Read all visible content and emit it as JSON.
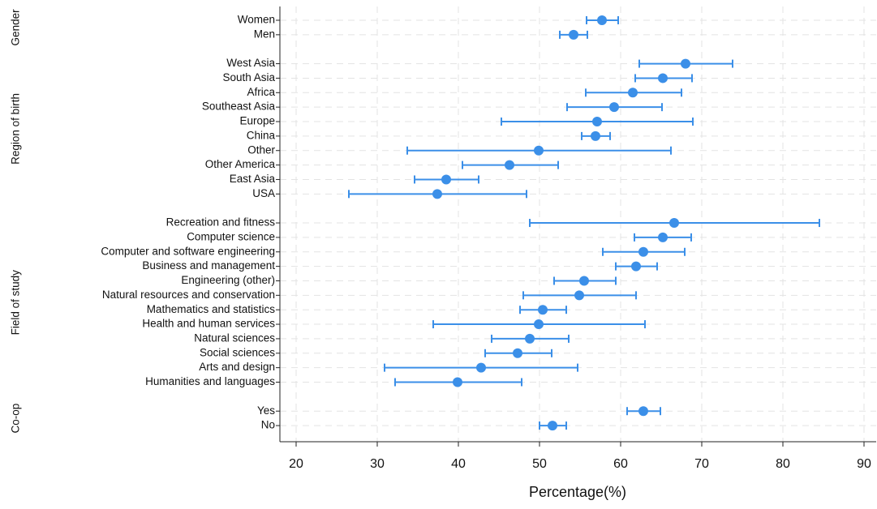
{
  "chart_data": {
    "type": "errorbar",
    "color": "#3b8fe8",
    "grid": true,
    "xlabel": "Percentage(%)",
    "xlim": [
      18,
      91.5
    ],
    "xticks": [
      20,
      30,
      40,
      50,
      60,
      70,
      80,
      90
    ],
    "groups": [
      {
        "name": "Gender",
        "categories": [
          "Women",
          "Men"
        ],
        "values": [
          57.7,
          54.2
        ],
        "ci_low": [
          55.8,
          52.5
        ],
        "ci_high": [
          59.7,
          55.9
        ]
      },
      {
        "name": "Region of birth",
        "categories": [
          "West Asia",
          "South Asia",
          "Africa",
          "Southeast Asia",
          "Europe",
          "China",
          "Other",
          "Other America",
          "East Asia",
          "USA"
        ],
        "values": [
          68.0,
          65.2,
          61.5,
          59.2,
          57.1,
          56.9,
          49.9,
          46.3,
          38.5,
          37.4
        ],
        "ci_low": [
          62.3,
          61.8,
          55.7,
          53.4,
          45.3,
          55.2,
          33.7,
          40.5,
          34.6,
          26.5
        ],
        "ci_high": [
          73.8,
          68.8,
          67.5,
          65.1,
          68.9,
          58.7,
          66.2,
          52.3,
          42.5,
          48.4
        ]
      },
      {
        "name": "Field of study",
        "categories": [
          "Recreation and fitness",
          "Computer science",
          "Computer and software engineering",
          "Business and management",
          "Engineering (other)",
          "Natural resources and conservation",
          "Mathematics and statistics",
          "Health and human services",
          "Natural sciences",
          "Social sciences",
          "Arts and design",
          "Humanities and languages"
        ],
        "values": [
          66.6,
          65.2,
          62.8,
          61.9,
          55.5,
          54.9,
          50.4,
          49.9,
          48.8,
          47.3,
          42.8,
          39.9
        ],
        "ci_low": [
          48.8,
          61.7,
          57.8,
          59.4,
          51.8,
          48.0,
          47.6,
          36.9,
          44.1,
          43.3,
          30.9,
          32.2
        ],
        "ci_high": [
          84.5,
          68.7,
          67.9,
          64.5,
          59.4,
          61.9,
          53.3,
          63.0,
          53.6,
          51.5,
          54.7,
          47.8
        ]
      },
      {
        "name": "Co-op",
        "categories": [
          "Yes",
          "No"
        ],
        "values": [
          62.8,
          51.6
        ],
        "ci_low": [
          60.8,
          50.0
        ],
        "ci_high": [
          64.9,
          53.3
        ]
      }
    ]
  }
}
